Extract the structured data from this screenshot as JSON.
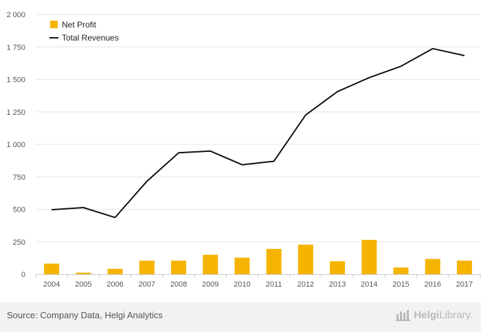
{
  "chart_data": {
    "type": "bar+line",
    "categories": [
      "2004",
      "2005",
      "2006",
      "2007",
      "2008",
      "2009",
      "2010",
      "2011",
      "2012",
      "2013",
      "2014",
      "2015",
      "2016",
      "2017"
    ],
    "series": [
      {
        "name": "Net Profit",
        "type": "bar",
        "color": "#f5b400",
        "values": [
          82,
          12,
          42,
          105,
          105,
          150,
          128,
          195,
          228,
          100,
          265,
          52,
          118,
          105
        ]
      },
      {
        "name": "Total Revenues",
        "type": "line",
        "color": "#111111",
        "values": [
          497,
          513,
          437,
          716,
          935,
          948,
          843,
          870,
          1226,
          1406,
          1514,
          1601,
          1737,
          1683
        ]
      }
    ],
    "ylim": [
      0,
      2000
    ],
    "yticks": [
      0,
      250,
      500,
      750,
      1000,
      1250,
      1500,
      1750,
      2000
    ],
    "ytick_labels": [
      "0",
      "250",
      "500",
      "750",
      "1 000",
      "1 250",
      "1 500",
      "1 750",
      "2 000"
    ],
    "title": "",
    "xlabel": "",
    "ylabel": "",
    "grid": true,
    "legend_position": "top-left"
  },
  "footer": {
    "source": "Source: Company Data, Helgi Analytics",
    "brand_bold": "Helgi",
    "brand_rest": "Library."
  },
  "icons": {
    "brand_logo": "helgi-library-logo-icon"
  }
}
